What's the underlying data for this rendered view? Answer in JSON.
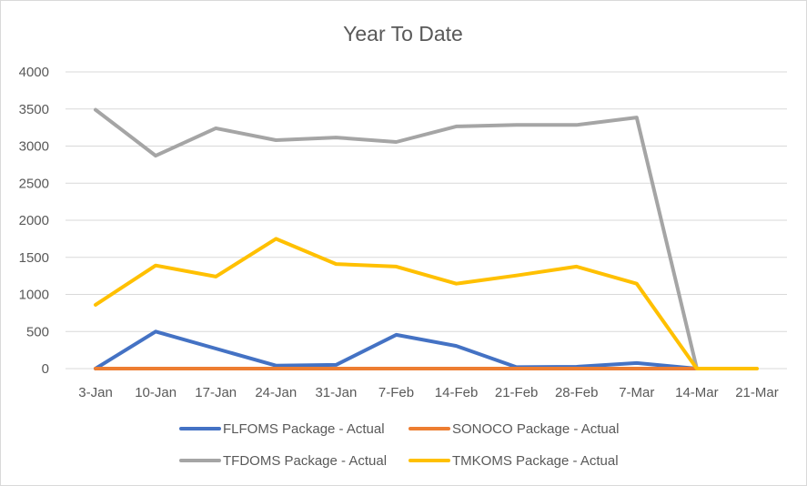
{
  "chart_data": {
    "type": "line",
    "title": "Year To Date",
    "xlabel": "",
    "ylabel": "",
    "categories": [
      "3-Jan",
      "10-Jan",
      "17-Jan",
      "24-Jan",
      "31-Jan",
      "7-Feb",
      "14-Feb",
      "21-Feb",
      "28-Feb",
      "7-Mar",
      "14-Mar",
      "21-Mar"
    ],
    "ylim": [
      0,
      4000
    ],
    "yticks": [
      0,
      500,
      1000,
      1500,
      2000,
      2500,
      3000,
      3500,
      4000
    ],
    "grid": true,
    "legend_position": "bottom",
    "series": [
      {
        "name": "FLFOMS Package - Actual",
        "color": "#4472c4",
        "values": [
          0,
          500,
          270,
          40,
          50,
          455,
          305,
          20,
          25,
          75,
          0,
          null
        ]
      },
      {
        "name": "SONOCO Package - Actual",
        "color": "#ed7d31",
        "values": [
          0,
          0,
          0,
          0,
          0,
          0,
          0,
          0,
          0,
          0,
          0,
          null
        ]
      },
      {
        "name": "TFDOMS Package - Actual",
        "color": "#a5a5a5",
        "values": [
          3490,
          2870,
          3240,
          3080,
          3115,
          3055,
          3265,
          3285,
          3285,
          3385,
          0,
          null
        ]
      },
      {
        "name": "TMKOMS Package - Actual",
        "color": "#ffc000",
        "values": [
          860,
          1390,
          1240,
          1750,
          1410,
          1375,
          1145,
          1255,
          1375,
          1145,
          0,
          0
        ]
      }
    ]
  }
}
